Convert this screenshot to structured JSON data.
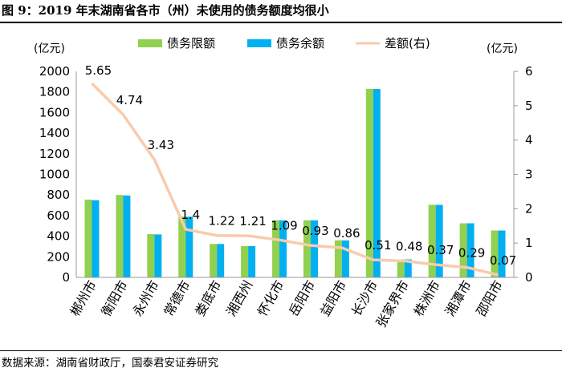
{
  "title": "图 9：2019 年末湖南省各市（州）未使用的债务额度均很小",
  "source": "数据来源：湖南省财政厅，国泰君安证券研究",
  "chart_data": {
    "type": "bar",
    "title": "2019 年末湖南省各市（州）未使用的债务额度均很小",
    "categories": [
      "郴州市",
      "衡阳市",
      "永州市",
      "常德市",
      "娄底市",
      "湘西州",
      "怀化市",
      "岳阳市",
      "益阳市",
      "长沙市",
      "张家界市",
      "株洲市",
      "湘潭市",
      "邵阳市"
    ],
    "series": [
      {
        "name": "债务限额",
        "axis": "left",
        "type": "bar",
        "color": "#92D050",
        "values": [
          755,
          800,
          420,
          590,
          325,
          305,
          555,
          555,
          360,
          1830,
          175,
          705,
          525,
          455
        ]
      },
      {
        "name": "债务余额",
        "axis": "left",
        "type": "bar",
        "color": "#00B0F0",
        "values": [
          749,
          795,
          417,
          589,
          324,
          304,
          554,
          554,
          359,
          1829,
          175,
          704,
          525,
          455
        ]
      },
      {
        "name": "差额(右)",
        "axis": "right",
        "type": "line",
        "color": "#F8CBAD",
        "values": [
          5.65,
          4.74,
          3.43,
          1.4,
          1.22,
          1.21,
          1.09,
          0.93,
          0.86,
          0.51,
          0.48,
          0.37,
          0.29,
          0.07
        ]
      }
    ],
    "left_axis": {
      "label": "(亿元)",
      "min": 0,
      "max": 2000,
      "ticks": [
        0,
        200,
        400,
        600,
        800,
        1000,
        1200,
        1400,
        1600,
        1800,
        2000
      ]
    },
    "right_axis": {
      "label": "(亿元)",
      "min": 0,
      "max": 6,
      "ticks": [
        0,
        1,
        2,
        3,
        4,
        5,
        6
      ]
    },
    "data_labels": [
      "5.65",
      "4.74",
      "3.43",
      "1.4",
      "1.22",
      "1.21",
      "1.09",
      "0.93",
      "0.86",
      "0.51",
      "0.48",
      "0.37",
      "0.29",
      "0.07"
    ],
    "legend": [
      "债务限额",
      "债务余额",
      "差额(右)"
    ],
    "legend_position": "top",
    "grid": false
  }
}
